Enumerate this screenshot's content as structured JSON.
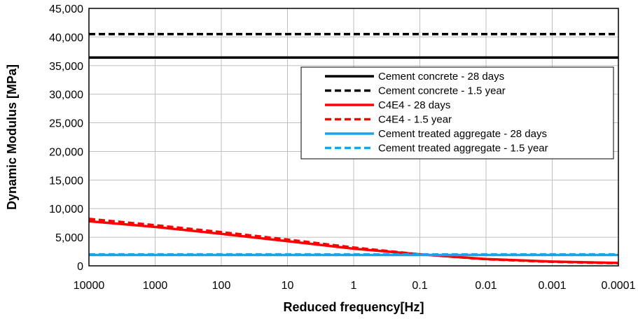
{
  "chart_data": {
    "type": "line",
    "title": "",
    "xlabel": "Reduced frequency[Hz]",
    "ylabel": "Dynamic Modulus [MPa]",
    "x_scale": "log",
    "x_direction": "descending",
    "xlim": [
      10000,
      0.0001
    ],
    "ylim": [
      0,
      45000
    ],
    "grid": true,
    "legend_position": "upper-right",
    "x_ticks": [
      10000,
      1000,
      100,
      10,
      1,
      0.1,
      0.01,
      0.001,
      0.0001
    ],
    "x_tick_labels": [
      "10000",
      "1000",
      "100",
      "10",
      "1",
      "0.1",
      "0.01",
      "0.001",
      "0.0001"
    ],
    "y_ticks": [
      0,
      5000,
      10000,
      15000,
      20000,
      25000,
      30000,
      35000,
      40000,
      45000
    ],
    "y_tick_labels": [
      "0",
      "5,000",
      "10,000",
      "15,000",
      "20,000",
      "25,000",
      "30,000",
      "35,000",
      "40,000",
      "45,000"
    ],
    "series": [
      {
        "name": "Cement concrete  - 28 days",
        "color": "#000000",
        "dash": "solid",
        "x": [
          10000,
          1000,
          100,
          10,
          1,
          0.1,
          0.01,
          0.001,
          0.0001
        ],
        "y": [
          36400,
          36400,
          36400,
          36400,
          36400,
          36400,
          36400,
          36400,
          36400
        ]
      },
      {
        "name": "Cement concrete - 1.5 year",
        "color": "#000000",
        "dash": "dashed",
        "x": [
          10000,
          1000,
          100,
          10,
          1,
          0.1,
          0.01,
          0.001,
          0.0001
        ],
        "y": [
          40500,
          40500,
          40500,
          40500,
          40500,
          40500,
          40500,
          40500,
          40500
        ]
      },
      {
        "name": "C4E4 - 28 days",
        "color": "#ff0000",
        "dash": "solid",
        "x": [
          10000,
          1000,
          100,
          10,
          1,
          0.1,
          0.01,
          0.001,
          0.0001
        ],
        "y": [
          7800,
          6800,
          5600,
          4300,
          3000,
          2000,
          1200,
          750,
          500
        ]
      },
      {
        "name": "C4E4 - 1.5 year",
        "color": "#ff0000",
        "dash": "dashed",
        "x": [
          10000,
          1000,
          100,
          10,
          1,
          0.1,
          0.01,
          0.001,
          0.0001
        ],
        "y": [
          8200,
          7100,
          5900,
          4600,
          3200,
          2000,
          1150,
          700,
          450
        ]
      },
      {
        "name": "Cement treated aggregate - 28 days",
        "color": "#1aa3e8",
        "dash": "solid",
        "x": [
          10000,
          1000,
          100,
          10,
          1,
          0.1,
          0.01,
          0.001,
          0.0001
        ],
        "y": [
          1900,
          1900,
          1900,
          1900,
          1900,
          1900,
          1900,
          1900,
          1900
        ]
      },
      {
        "name": "Cement treated aggregate - 1.5 year",
        "color": "#1aa3e8",
        "dash": "dashed",
        "x": [
          10000,
          1000,
          100,
          10,
          1,
          0.1,
          0.01,
          0.001,
          0.0001
        ],
        "y": [
          2000,
          2000,
          2000,
          2000,
          2000,
          2000,
          2000,
          2000,
          2000
        ]
      }
    ]
  }
}
